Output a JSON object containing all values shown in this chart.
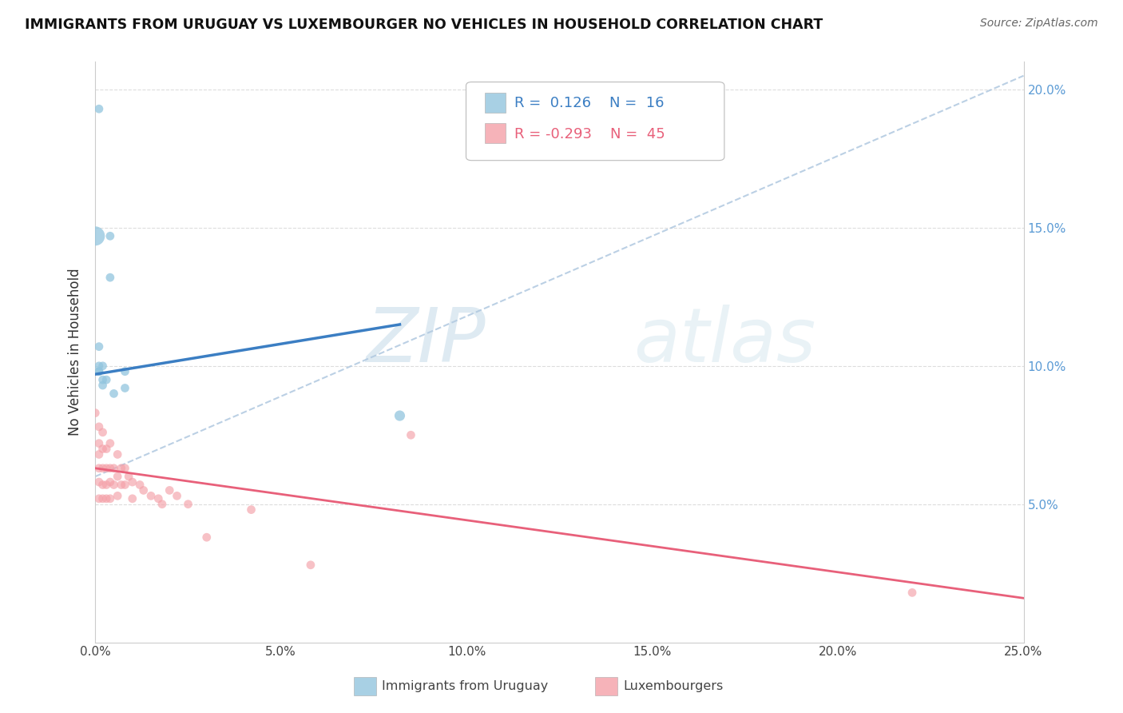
{
  "title": "IMMIGRANTS FROM URUGUAY VS LUXEMBOURGER NO VEHICLES IN HOUSEHOLD CORRELATION CHART",
  "source": "Source: ZipAtlas.com",
  "ylabel": "No Vehicles in Household",
  "xmin": 0.0,
  "xmax": 0.25,
  "ymin": 0.0,
  "ymax": 0.21,
  "x_ticks": [
    0.0,
    0.05,
    0.1,
    0.15,
    0.2,
    0.25
  ],
  "x_tick_labels": [
    "0.0%",
    "5.0%",
    "10.0%",
    "15.0%",
    "20.0%",
    "25.0%"
  ],
  "y_ticks": [
    0.05,
    0.1,
    0.15,
    0.2
  ],
  "y_tick_labels": [
    "5.0%",
    "10.0%",
    "15.0%",
    "20.0%"
  ],
  "legend_labels": [
    "Immigrants from Uruguay",
    "Luxembourgers"
  ],
  "R_blue": 0.126,
  "N_blue": 16,
  "R_pink": -0.293,
  "N_pink": 45,
  "blue_color": "#92c5de",
  "pink_color": "#f4a0a8",
  "blue_line_color": "#3b7ec3",
  "pink_line_color": "#e8607a",
  "watermark_zip": "ZIP",
  "watermark_atlas": "atlas",
  "blue_points": [
    [
      0.001,
      0.193
    ],
    [
      0.004,
      0.147
    ],
    [
      0.004,
      0.132
    ],
    [
      0.001,
      0.107
    ],
    [
      0.002,
      0.1
    ],
    [
      0.001,
      0.098
    ],
    [
      0.002,
      0.093
    ],
    [
      0.0,
      0.147
    ],
    [
      0.001,
      0.1
    ],
    [
      0.001,
      0.098
    ],
    [
      0.002,
      0.095
    ],
    [
      0.003,
      0.095
    ],
    [
      0.005,
      0.09
    ],
    [
      0.008,
      0.098
    ],
    [
      0.008,
      0.092
    ],
    [
      0.082,
      0.082
    ]
  ],
  "blue_sizes": [
    60,
    60,
    60,
    60,
    60,
    60,
    60,
    300,
    60,
    60,
    60,
    60,
    60,
    60,
    60,
    90
  ],
  "pink_points": [
    [
      0.0,
      0.083
    ],
    [
      0.001,
      0.078
    ],
    [
      0.001,
      0.072
    ],
    [
      0.001,
      0.068
    ],
    [
      0.001,
      0.063
    ],
    [
      0.001,
      0.058
    ],
    [
      0.001,
      0.052
    ],
    [
      0.002,
      0.076
    ],
    [
      0.002,
      0.07
    ],
    [
      0.002,
      0.063
    ],
    [
      0.002,
      0.057
    ],
    [
      0.002,
      0.052
    ],
    [
      0.003,
      0.07
    ],
    [
      0.003,
      0.063
    ],
    [
      0.003,
      0.057
    ],
    [
      0.003,
      0.052
    ],
    [
      0.004,
      0.072
    ],
    [
      0.004,
      0.063
    ],
    [
      0.004,
      0.058
    ],
    [
      0.004,
      0.052
    ],
    [
      0.005,
      0.063
    ],
    [
      0.005,
      0.057
    ],
    [
      0.006,
      0.068
    ],
    [
      0.006,
      0.06
    ],
    [
      0.006,
      0.053
    ],
    [
      0.007,
      0.063
    ],
    [
      0.007,
      0.057
    ],
    [
      0.008,
      0.063
    ],
    [
      0.008,
      0.057
    ],
    [
      0.009,
      0.06
    ],
    [
      0.01,
      0.058
    ],
    [
      0.01,
      0.052
    ],
    [
      0.012,
      0.057
    ],
    [
      0.013,
      0.055
    ],
    [
      0.015,
      0.053
    ],
    [
      0.017,
      0.052
    ],
    [
      0.018,
      0.05
    ],
    [
      0.02,
      0.055
    ],
    [
      0.022,
      0.053
    ],
    [
      0.025,
      0.05
    ],
    [
      0.03,
      0.038
    ],
    [
      0.042,
      0.048
    ],
    [
      0.058,
      0.028
    ],
    [
      0.085,
      0.075
    ],
    [
      0.22,
      0.018
    ]
  ],
  "pink_sizes": [
    60,
    60,
    60,
    60,
    60,
    60,
    60,
    60,
    60,
    60,
    60,
    60,
    60,
    60,
    60,
    60,
    60,
    60,
    60,
    60,
    60,
    60,
    60,
    60,
    60,
    60,
    60,
    60,
    60,
    60,
    60,
    60,
    60,
    60,
    60,
    60,
    60,
    60,
    60,
    60,
    60,
    60,
    60,
    60,
    60
  ]
}
